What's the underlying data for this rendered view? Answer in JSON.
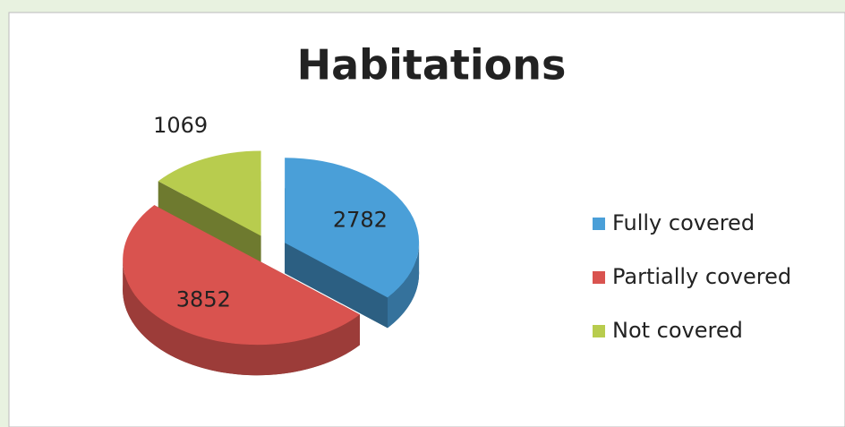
{
  "chart_data": {
    "type": "pie",
    "title": "Habitations",
    "categories": [
      "Fully covered",
      "Partially covered",
      "Not covered"
    ],
    "values": [
      2782,
      3852,
      1069
    ],
    "colors": [
      "#4a9fd8",
      "#d9534f",
      "#b8cc4e"
    ],
    "legend": "right"
  }
}
